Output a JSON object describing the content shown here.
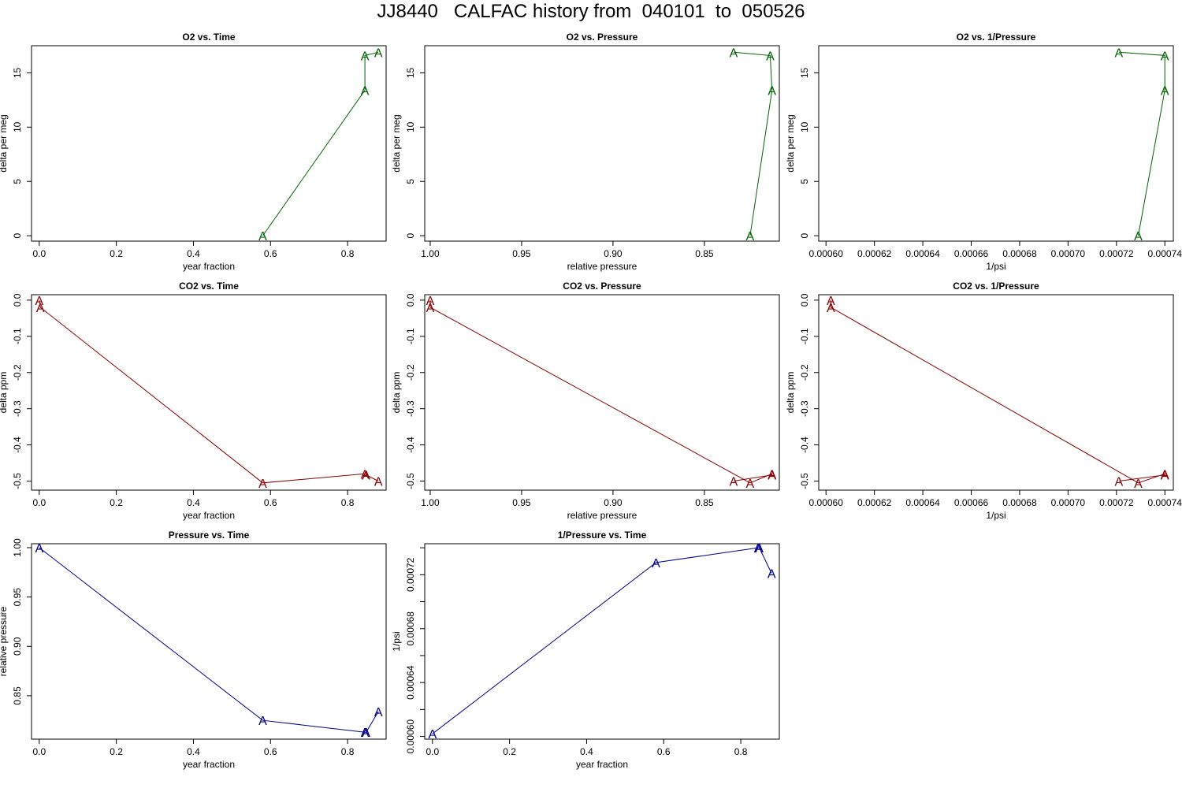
{
  "title": "JJ8440   CALFAC history from  040101  to  050526",
  "chart_data": [
    {
      "type": "line",
      "title": "O2 vs. Time",
      "xlabel": "year fraction",
      "ylabel": "delta per meg",
      "xlim": [
        -0.02,
        0.9
      ],
      "ylim": [
        -0.5,
        17.5
      ],
      "xticks": [
        0.0,
        0.2,
        0.4,
        0.6,
        0.8
      ],
      "xtick_labels": [
        "0.0",
        "0.2",
        "0.4",
        "0.6",
        "0.8"
      ],
      "yticks": [
        0,
        5,
        10,
        15
      ],
      "ytick_labels": [
        "0",
        "5",
        "10",
        "15"
      ],
      "color": "#006400",
      "marker": "A",
      "points": [
        [
          0.58,
          0.0
        ],
        [
          0.845,
          13.4
        ],
        [
          0.845,
          16.6
        ],
        [
          0.88,
          16.9
        ]
      ]
    },
    {
      "type": "line",
      "title": "O2 vs. Pressure",
      "xlabel": "relative pressure",
      "ylabel": "delta per meg",
      "xlim": [
        1.003,
        0.809
      ],
      "ylim": [
        -0.5,
        17.5
      ],
      "xticks": [
        1.0,
        0.95,
        0.9,
        0.85
      ],
      "xtick_labels": [
        "1.00",
        "0.95",
        "0.90",
        "0.85"
      ],
      "yticks": [
        0,
        5,
        10,
        15
      ],
      "ytick_labels": [
        "0",
        "5",
        "10",
        "15"
      ],
      "color": "#006400",
      "marker": "A",
      "points": [
        [
          0.825,
          0.0
        ],
        [
          0.813,
          13.4
        ],
        [
          0.814,
          16.6
        ],
        [
          0.834,
          16.9
        ]
      ]
    },
    {
      "type": "line",
      "title": "O2 vs. 1/Pressure",
      "xlabel": "1/psi",
      "ylabel": "delta per meg",
      "xlim": [
        0.000597,
        0.0007435
      ],
      "ylim": [
        -0.5,
        17.5
      ],
      "xticks": [
        0.0006,
        0.00062,
        0.00064,
        0.00066,
        0.00068,
        0.0007,
        0.00072,
        0.00074
      ],
      "xtick_labels": [
        "0.00060",
        "0.00062",
        "0.00064",
        "0.00066",
        "0.00068",
        "0.00070",
        "0.00072",
        "0.00074"
      ],
      "yticks": [
        0,
        5,
        10,
        15
      ],
      "ytick_labels": [
        "0",
        "5",
        "10",
        "15"
      ],
      "color": "#006400",
      "marker": "A",
      "points": [
        [
          0.000729,
          0.0
        ],
        [
          0.00074,
          13.4
        ],
        [
          0.00074,
          16.6
        ],
        [
          0.000721,
          16.9
        ]
      ]
    },
    {
      "type": "line",
      "title": "CO2 vs. Time",
      "xlabel": "year fraction",
      "ylabel": "delta ppm",
      "xlim": [
        -0.02,
        0.9
      ],
      "ylim": [
        -0.525,
        0.015
      ],
      "xticks": [
        0.0,
        0.2,
        0.4,
        0.6,
        0.8
      ],
      "xtick_labels": [
        "0.0",
        "0.2",
        "0.4",
        "0.6",
        "0.8"
      ],
      "yticks": [
        0.0,
        -0.1,
        -0.2,
        -0.3,
        -0.4,
        -0.5
      ],
      "ytick_labels": [
        "0.0",
        "-0.1",
        "-0.2",
        "-0.3",
        "-0.4",
        "-0.5"
      ],
      "color": "#8b0000",
      "marker": "A",
      "points": [
        [
          0.0,
          0.0
        ],
        [
          0.003,
          -0.02
        ],
        [
          0.58,
          -0.505
        ],
        [
          0.845,
          -0.48
        ],
        [
          0.848,
          -0.483
        ],
        [
          0.88,
          -0.5
        ]
      ]
    },
    {
      "type": "line",
      "title": "CO2 vs. Pressure",
      "xlabel": "relative pressure",
      "ylabel": "delta ppm",
      "xlim": [
        1.003,
        0.809
      ],
      "ylim": [
        -0.525,
        0.015
      ],
      "xticks": [
        1.0,
        0.95,
        0.9,
        0.85
      ],
      "xtick_labels": [
        "1.00",
        "0.95",
        "0.90",
        "0.85"
      ],
      "yticks": [
        0.0,
        -0.1,
        -0.2,
        -0.3,
        -0.4,
        -0.5
      ],
      "ytick_labels": [
        "0.0",
        "-0.1",
        "-0.2",
        "-0.3",
        "-0.4",
        "-0.5"
      ],
      "color": "#8b0000",
      "marker": "A",
      "points": [
        [
          1.0,
          0.0
        ],
        [
          1.0,
          -0.02
        ],
        [
          0.825,
          -0.505
        ],
        [
          0.813,
          -0.48
        ],
        [
          0.813,
          -0.483
        ],
        [
          0.834,
          -0.5
        ]
      ]
    },
    {
      "type": "line",
      "title": "CO2 vs. 1/Pressure",
      "xlabel": "1/psi",
      "ylabel": "delta ppm",
      "xlim": [
        0.000597,
        0.0007435
      ],
      "ylim": [
        -0.525,
        0.015
      ],
      "xticks": [
        0.0006,
        0.00062,
        0.00064,
        0.00066,
        0.00068,
        0.0007,
        0.00072,
        0.00074
      ],
      "xtick_labels": [
        "0.00060",
        "0.00062",
        "0.00064",
        "0.00066",
        "0.00068",
        "0.00070",
        "0.00072",
        "0.00074"
      ],
      "yticks": [
        0.0,
        -0.1,
        -0.2,
        -0.3,
        -0.4,
        -0.5
      ],
      "ytick_labels": [
        "0.0",
        "-0.1",
        "-0.2",
        "-0.3",
        "-0.4",
        "-0.5"
      ],
      "color": "#8b0000",
      "marker": "A",
      "points": [
        [
          0.000602,
          0.0
        ],
        [
          0.000602,
          -0.02
        ],
        [
          0.000729,
          -0.505
        ],
        [
          0.00074,
          -0.48
        ],
        [
          0.00074,
          -0.483
        ],
        [
          0.000721,
          -0.5
        ]
      ]
    },
    {
      "type": "line",
      "title": "Pressure vs. Time",
      "xlabel": "year fraction",
      "ylabel": "relative pressure",
      "xlim": [
        -0.02,
        0.9
      ],
      "ylim": [
        0.806,
        1.004
      ],
      "xticks": [
        0.0,
        0.2,
        0.4,
        0.6,
        0.8
      ],
      "xtick_labels": [
        "0.0",
        "0.2",
        "0.4",
        "0.6",
        "0.8"
      ],
      "yticks": [
        0.85,
        0.9,
        0.95,
        1.0
      ],
      "ytick_labels": [
        "0.85",
        "0.90",
        "0.95",
        "1.00"
      ],
      "color": "#00008b",
      "marker": "A",
      "points": [
        [
          0.0,
          1.0
        ],
        [
          0.58,
          0.825
        ],
        [
          0.845,
          0.813
        ],
        [
          0.848,
          0.813
        ],
        [
          0.88,
          0.834
        ]
      ]
    },
    {
      "type": "line",
      "title": "1/Pressure vs. Time",
      "xlabel": "year fraction",
      "ylabel": "1/psi",
      "xlim": [
        -0.02,
        0.9
      ],
      "ylim": [
        0.000598,
        0.000743
      ],
      "xticks": [
        0.0,
        0.2,
        0.4,
        0.6,
        0.8
      ],
      "xtick_labels": [
        "0.0",
        "0.2",
        "0.4",
        "0.6",
        "0.8"
      ],
      "yticks": [
        0.0006,
        0.00064,
        0.00068,
        0.00072
      ],
      "ytick_labels": [
        "0.00060",
        "0.00064",
        "0.00068",
        "0.00072"
      ],
      "yminor_ticks": [
        0.00062,
        0.00066,
        0.0007,
        0.00074
      ],
      "color": "#00008b",
      "marker": "A",
      "points": [
        [
          0.0,
          0.000602
        ],
        [
          0.58,
          0.000729
        ],
        [
          0.845,
          0.00074
        ],
        [
          0.848,
          0.00074
        ],
        [
          0.88,
          0.000721
        ]
      ]
    }
  ]
}
